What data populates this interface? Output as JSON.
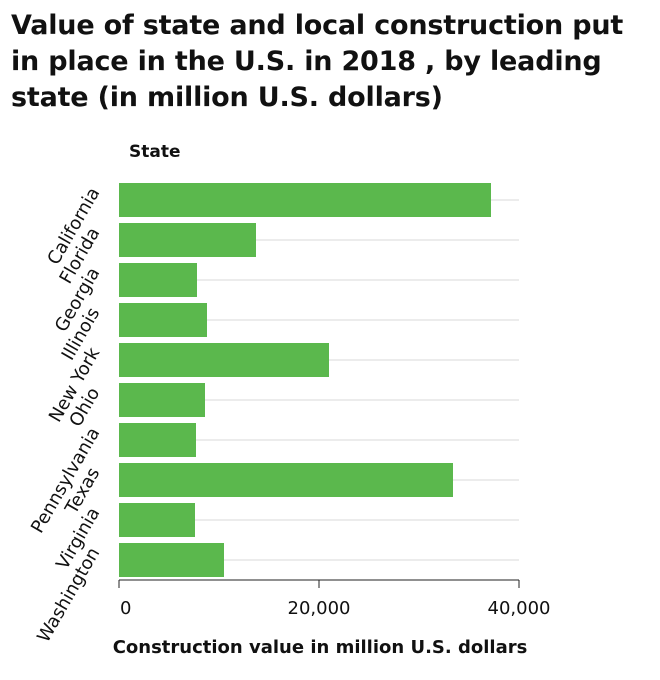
{
  "chart_data": {
    "type": "bar",
    "orientation": "horizontal",
    "title_lines": [
      "Value of state and local construction put",
      "in place in the U.S. in 2018 , by leading",
      "state (in million U.S. dollars)"
    ],
    "ylabel": "State",
    "xlabel": "Construction value in million U.S. dollars",
    "categories": [
      "California",
      "Florida",
      "Georgia",
      "Illinois",
      "New York",
      "Ohio",
      "Pennsylvania",
      "Texas",
      "Virginia",
      "Washington"
    ],
    "values": [
      37200,
      13700,
      7800,
      8800,
      21000,
      8600,
      7700,
      33400,
      7600,
      10500
    ],
    "xlim": [
      0,
      40000
    ],
    "xticks": [
      0,
      20000,
      40000
    ],
    "xtick_labels": [
      "0",
      "20,000",
      "40,000"
    ],
    "grid": "horizontal",
    "bar_color": "#5bb84d",
    "grid_color": "#d9d9d9"
  }
}
